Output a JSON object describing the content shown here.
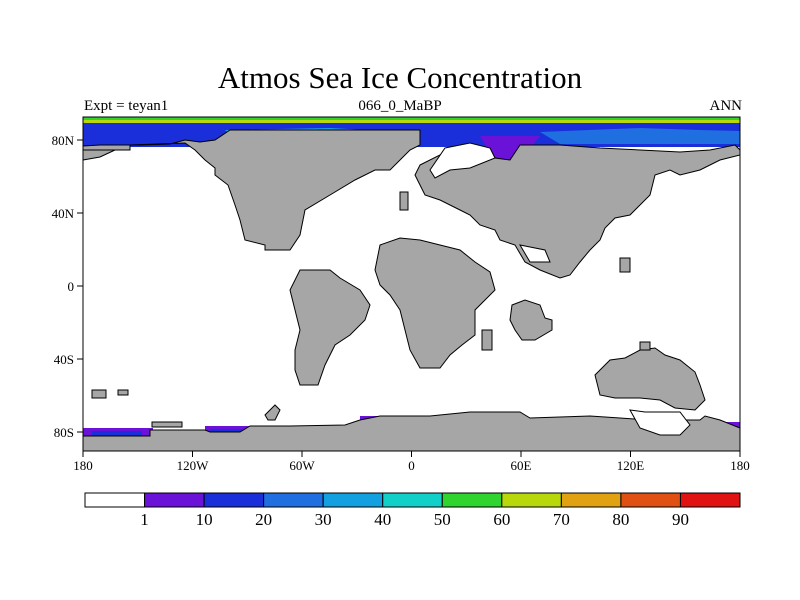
{
  "header": {
    "title": "Atmos Sea Ice Concentration",
    "left": "Expt = teyan1",
    "center": "066_0_MaBP",
    "right": "ANN"
  },
  "map": {
    "x_ticks": [
      "180",
      "120W",
      "60W",
      "0",
      "60E",
      "120E",
      "180"
    ],
    "y_ticks": [
      "80N",
      "40N",
      "0",
      "40S",
      "80S"
    ],
    "land_color": "#a6a6a6",
    "ocean_color": "#ffffff"
  },
  "colorbar": {
    "labels": [
      "1",
      "10",
      "20",
      "30",
      "40",
      "50",
      "60",
      "70",
      "80",
      "90"
    ],
    "colors": [
      "#ffffff",
      "#6b12d9",
      "#1a2fd9",
      "#1f6fe0",
      "#12a0e0",
      "#10d0c8",
      "#2fd42f",
      "#b8d80c",
      "#e0a212",
      "#e05012",
      "#e01212"
    ]
  }
}
